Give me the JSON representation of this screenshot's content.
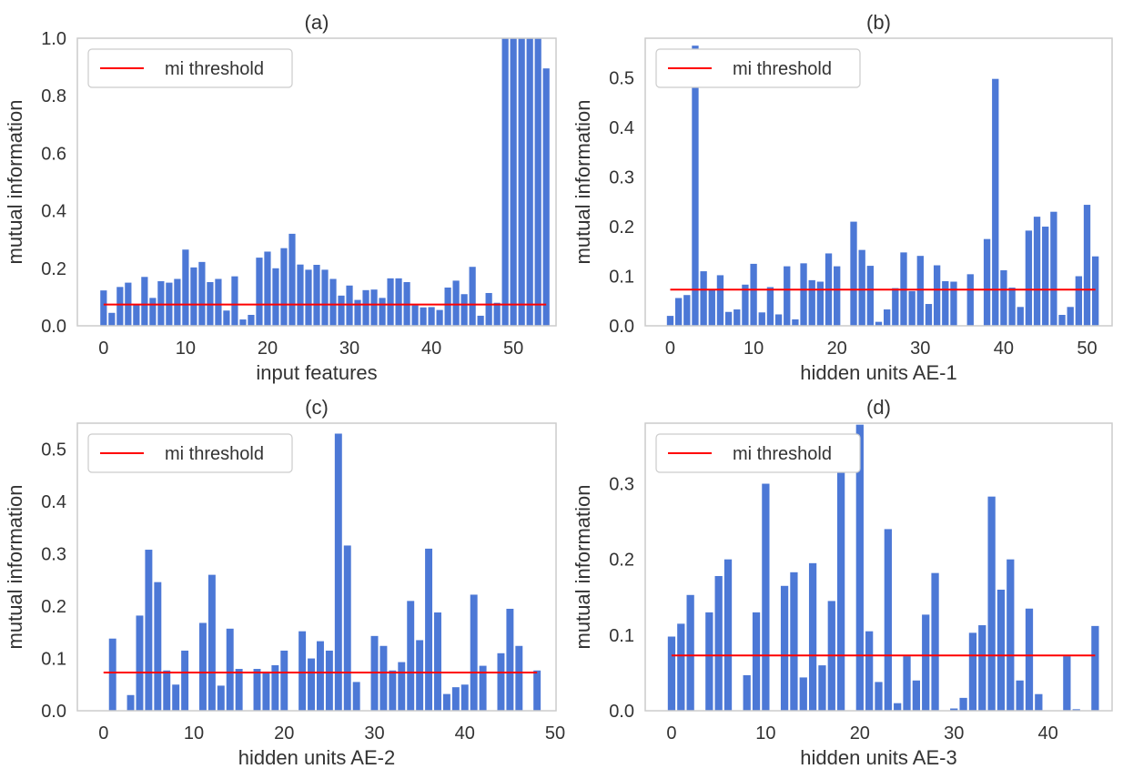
{
  "chart_data": [
    {
      "type": "bar",
      "title": "(a)",
      "xlabel": "input features",
      "ylabel": "mutual information",
      "xlim": [
        -3.2,
        55.2
      ],
      "ylim": [
        0,
        1.0
      ],
      "xticks": [
        0,
        10,
        20,
        30,
        40,
        50
      ],
      "yticks": [
        0.0,
        0.2,
        0.4,
        0.6,
        0.8,
        1.0
      ],
      "ytick_labels": [
        "0.0",
        "0.2",
        "0.4",
        "0.6",
        "0.8",
        "1.0"
      ],
      "x": [
        0,
        1,
        2,
        3,
        4,
        5,
        6,
        7,
        8,
        9,
        10,
        11,
        12,
        13,
        14,
        15,
        16,
        17,
        18,
        19,
        20,
        21,
        22,
        23,
        24,
        25,
        26,
        27,
        28,
        29,
        30,
        31,
        32,
        33,
        34,
        35,
        36,
        37,
        38,
        39,
        40,
        41,
        42,
        43,
        44,
        45,
        46,
        47,
        48,
        49,
        50,
        51,
        52,
        53,
        54
      ],
      "values": [
        0.123,
        0.045,
        0.135,
        0.15,
        0.075,
        0.17,
        0.097,
        0.155,
        0.15,
        0.163,
        0.265,
        0.203,
        0.222,
        0.152,
        0.163,
        0.053,
        0.172,
        0.022,
        0.038,
        0.237,
        0.258,
        0.2,
        0.27,
        0.32,
        0.213,
        0.195,
        0.212,
        0.195,
        0.163,
        0.105,
        0.14,
        0.09,
        0.124,
        0.126,
        0.097,
        0.165,
        0.165,
        0.152,
        0.071,
        0.064,
        0.065,
        0.055,
        0.133,
        0.157,
        0.11,
        0.205,
        0.035,
        0.114,
        0.08,
        1.0,
        1.0,
        1.0,
        1.0,
        1.0,
        0.895
      ],
      "threshold": {
        "label": "mi threshold",
        "value": 0.074,
        "x_range": [
          0,
          54
        ]
      },
      "legend_placement": "top-left",
      "grid": false
    },
    {
      "type": "bar",
      "title": "(b)",
      "xlabel": "hidden units AE-1",
      "ylabel": "mutual information",
      "xlim": [
        -3.0,
        53.0
      ],
      "ylim": [
        0,
        0.58
      ],
      "xticks": [
        0,
        10,
        20,
        30,
        40,
        50
      ],
      "yticks": [
        0.0,
        0.1,
        0.2,
        0.3,
        0.4,
        0.5
      ],
      "ytick_labels": [
        "0.0",
        "0.1",
        "0.2",
        "0.3",
        "0.4",
        "0.5"
      ],
      "x": [
        0,
        1,
        2,
        3,
        4,
        5,
        6,
        7,
        8,
        9,
        10,
        11,
        12,
        13,
        14,
        15,
        16,
        17,
        18,
        19,
        20,
        21,
        22,
        23,
        24,
        25,
        26,
        27,
        28,
        29,
        30,
        31,
        32,
        33,
        34,
        35,
        36,
        37,
        38,
        39,
        40,
        41,
        42,
        43,
        44,
        45,
        46,
        47,
        48,
        49,
        50,
        51
      ],
      "values": [
        0.02,
        0.056,
        0.062,
        0.565,
        0.11,
        0.074,
        0.102,
        0.028,
        0.033,
        0.083,
        0.125,
        0.027,
        0.078,
        0.023,
        0.12,
        0.013,
        0.126,
        0.092,
        0.089,
        0.146,
        0.12,
        0.0,
        0.21,
        0.153,
        0.121,
        0.008,
        0.033,
        0.076,
        0.148,
        0.07,
        0.141,
        0.044,
        0.122,
        0.09,
        0.089,
        0.0,
        0.104,
        0.0,
        0.175,
        0.498,
        0.112,
        0.077,
        0.038,
        0.192,
        0.22,
        0.2,
        0.23,
        0.022,
        0.038,
        0.1,
        0.244,
        0.14
      ],
      "threshold": {
        "label": "mi threshold",
        "value": 0.073,
        "x_range": [
          0,
          51
        ]
      },
      "legend_placement": "top-left",
      "grid": false
    },
    {
      "type": "bar",
      "title": "(c)",
      "xlabel": "hidden units AE-2",
      "ylabel": "mutual information",
      "xlim": [
        -2.9,
        50.1
      ],
      "ylim": [
        0,
        0.55
      ],
      "xticks": [
        0,
        10,
        20,
        30,
        40,
        50
      ],
      "yticks": [
        0.0,
        0.1,
        0.2,
        0.3,
        0.4,
        0.5
      ],
      "ytick_labels": [
        "0.0",
        "0.1",
        "0.2",
        "0.3",
        "0.4",
        "0.5"
      ],
      "x": [
        0,
        1,
        2,
        3,
        4,
        5,
        6,
        7,
        8,
        9,
        10,
        11,
        12,
        13,
        14,
        15,
        16,
        17,
        18,
        19,
        20,
        21,
        22,
        23,
        24,
        25,
        26,
        27,
        28,
        29,
        30,
        31,
        32,
        33,
        34,
        35,
        36,
        37,
        38,
        39,
        40,
        41,
        42,
        43,
        44,
        45,
        46,
        47,
        48
      ],
      "values": [
        0.0,
        0.138,
        0.0,
        0.03,
        0.182,
        0.308,
        0.246,
        0.077,
        0.05,
        0.115,
        0.0,
        0.168,
        0.26,
        0.048,
        0.157,
        0.08,
        0.0,
        0.08,
        0.075,
        0.087,
        0.115,
        0.0,
        0.152,
        0.1,
        0.133,
        0.115,
        0.53,
        0.316,
        0.055,
        0.0,
        0.143,
        0.124,
        0.077,
        0.093,
        0.21,
        0.135,
        0.31,
        0.188,
        0.032,
        0.045,
        0.05,
        0.222,
        0.086,
        0.0,
        0.11,
        0.195,
        0.124,
        0.0,
        0.077
      ],
      "threshold": {
        "label": "mi threshold",
        "value": 0.073,
        "x_range": [
          0,
          48
        ]
      },
      "legend_placement": "top-left",
      "grid": false
    },
    {
      "type": "bar",
      "title": "(d)",
      "xlabel": "hidden units AE-3",
      "ylabel": "mutual information",
      "xlim": [
        -2.8,
        46.8
      ],
      "ylim": [
        0,
        0.38
      ],
      "xticks": [
        0,
        10,
        20,
        30,
        40
      ],
      "yticks": [
        0.0,
        0.1,
        0.2,
        0.3
      ],
      "ytick_labels": [
        "0.0",
        "0.1",
        "0.2",
        "0.3"
      ],
      "x": [
        0,
        1,
        2,
        3,
        4,
        5,
        6,
        7,
        8,
        9,
        10,
        11,
        12,
        13,
        14,
        15,
        16,
        17,
        18,
        19,
        20,
        21,
        22,
        23,
        24,
        25,
        26,
        27,
        28,
        29,
        30,
        31,
        32,
        33,
        34,
        35,
        36,
        37,
        38,
        39,
        40,
        41,
        42,
        43,
        44,
        45
      ],
      "values": [
        0.098,
        0.115,
        0.153,
        0.0,
        0.13,
        0.178,
        0.2,
        0.0,
        0.047,
        0.13,
        0.3,
        0.0,
        0.165,
        0.183,
        0.044,
        0.195,
        0.06,
        0.145,
        0.326,
        0.0,
        0.378,
        0.105,
        0.038,
        0.24,
        0.01,
        0.072,
        0.04,
        0.127,
        0.182,
        0.0,
        0.003,
        0.017,
        0.103,
        0.113,
        0.283,
        0.16,
        0.2,
        0.04,
        0.135,
        0.022,
        0.0,
        0.0,
        0.072,
        0.002,
        0.0,
        0.112
      ],
      "threshold": {
        "label": "mi threshold",
        "value": 0.073,
        "x_range": [
          0,
          45
        ]
      },
      "legend_placement": "top-left",
      "grid": false
    }
  ],
  "colors": {
    "bar": "#4C78D6",
    "threshold": "#FF0000",
    "axes": "#CCCCCC",
    "text": "#333333"
  }
}
